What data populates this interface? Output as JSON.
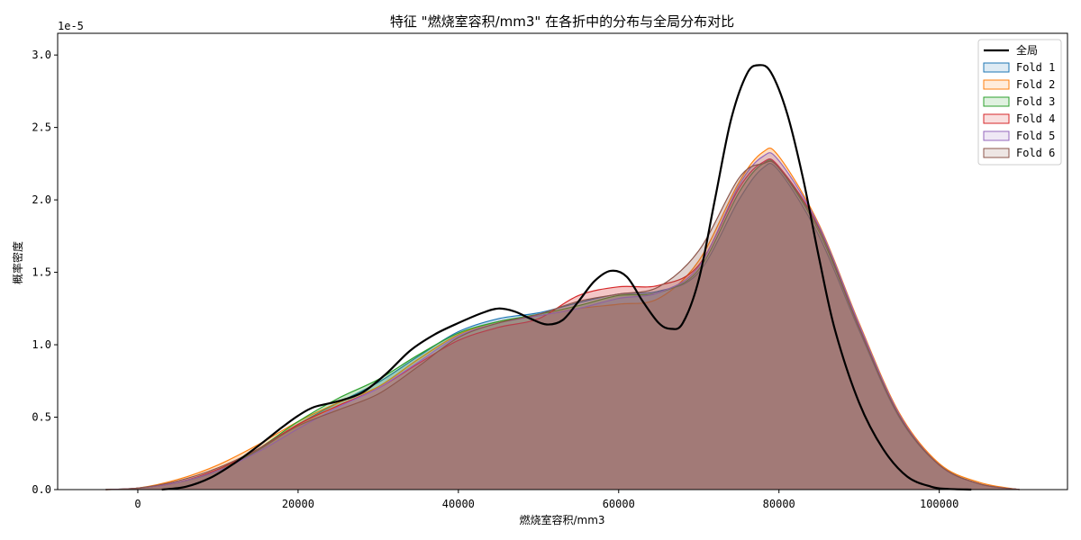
{
  "chart_data": {
    "type": "area",
    "title": "特征 \"燃烧室容积/mm3\" 在各折中的分布与全局分布对比",
    "xlabel": "燃烧室容积/mm3",
    "ylabel": "概率密度",
    "y_scale_label": "1e-5",
    "xlim": [
      -10000,
      116000
    ],
    "ylim": [
      0,
      3.15
    ],
    "x_ticks": [
      0,
      20000,
      40000,
      60000,
      80000,
      100000
    ],
    "x_tick_labels": [
      "0",
      "20000",
      "40000",
      "60000",
      "80000",
      "100000"
    ],
    "y_ticks": [
      0,
      0.5,
      1.0,
      1.5,
      2.0,
      2.5,
      3.0
    ],
    "y_tick_labels": [
      "0.0",
      "0.5",
      "1.0",
      "1.5",
      "2.0",
      "2.5",
      "3.0"
    ],
    "legend_position": "top-right",
    "x": [
      -4000,
      0,
      5000,
      10000,
      15000,
      20000,
      25000,
      30000,
      35000,
      40000,
      45000,
      50000,
      55000,
      60000,
      65000,
      70000,
      75000,
      78000,
      80000,
      85000,
      90000,
      95000,
      100000,
      105000,
      110000
    ],
    "series": [
      {
        "name": "全局",
        "kind": "line",
        "color": "#000000",
        "x": [
          3000,
          6000,
          9000,
          12000,
          15000,
          18000,
          20000,
          22000,
          25000,
          28000,
          31000,
          34000,
          37000,
          40000,
          43000,
          45000,
          47000,
          49000,
          51000,
          53000,
          55000,
          57000,
          59000,
          61000,
          63000,
          65000,
          66500,
          68000,
          70000,
          72000,
          74000,
          76000,
          77500,
          79000,
          81000,
          83000,
          85000,
          87000,
          90000,
          93000,
          96000,
          99000,
          101000,
          104000
        ],
        "values": [
          0.0,
          0.02,
          0.08,
          0.18,
          0.3,
          0.43,
          0.51,
          0.57,
          0.61,
          0.67,
          0.8,
          0.96,
          1.07,
          1.15,
          1.22,
          1.25,
          1.23,
          1.18,
          1.14,
          1.17,
          1.3,
          1.44,
          1.51,
          1.47,
          1.3,
          1.15,
          1.11,
          1.15,
          1.45,
          2.0,
          2.55,
          2.87,
          2.93,
          2.88,
          2.6,
          2.15,
          1.6,
          1.1,
          0.6,
          0.28,
          0.09,
          0.02,
          0.005,
          0.0
        ]
      },
      {
        "name": "Fold 1",
        "kind": "fill",
        "color": "#1f77b4",
        "values": [
          0.0,
          0.01,
          0.05,
          0.13,
          0.27,
          0.45,
          0.6,
          0.74,
          0.92,
          1.09,
          1.18,
          1.22,
          1.29,
          1.35,
          1.37,
          1.5,
          2.0,
          2.22,
          2.2,
          1.75,
          1.1,
          0.5,
          0.17,
          0.04,
          0.0
        ]
      },
      {
        "name": "Fold 2",
        "kind": "fill",
        "color": "#ff7f0e",
        "values": [
          0.0,
          0.01,
          0.07,
          0.17,
          0.31,
          0.47,
          0.6,
          0.71,
          0.9,
          1.07,
          1.16,
          1.2,
          1.25,
          1.28,
          1.32,
          1.58,
          2.12,
          2.33,
          2.3,
          1.83,
          1.15,
          0.53,
          0.18,
          0.05,
          0.0
        ]
      },
      {
        "name": "Fold 3",
        "kind": "fill",
        "color": "#2ca02c",
        "values": [
          0.0,
          0.01,
          0.05,
          0.13,
          0.28,
          0.47,
          0.63,
          0.76,
          0.93,
          1.08,
          1.16,
          1.21,
          1.27,
          1.34,
          1.36,
          1.52,
          2.05,
          2.25,
          2.22,
          1.78,
          1.12,
          0.51,
          0.17,
          0.04,
          0.0
        ]
      },
      {
        "name": "Fold 4",
        "kind": "fill",
        "color": "#d62728",
        "values": [
          0.0,
          0.01,
          0.05,
          0.14,
          0.28,
          0.45,
          0.58,
          0.7,
          0.87,
          1.03,
          1.12,
          1.18,
          1.34,
          1.4,
          1.41,
          1.55,
          2.08,
          2.26,
          2.23,
          1.81,
          1.13,
          0.52,
          0.17,
          0.04,
          0.0
        ]
      },
      {
        "name": "Fold 5",
        "kind": "fill",
        "color": "#9467bd",
        "values": [
          0.0,
          0.01,
          0.05,
          0.13,
          0.26,
          0.42,
          0.57,
          0.7,
          0.88,
          1.06,
          1.15,
          1.2,
          1.25,
          1.32,
          1.36,
          1.54,
          2.1,
          2.3,
          2.27,
          1.82,
          1.14,
          0.52,
          0.17,
          0.04,
          0.0
        ]
      },
      {
        "name": "Fold 6",
        "kind": "fill",
        "color": "#8c564b",
        "values": [
          0.0,
          0.01,
          0.06,
          0.15,
          0.28,
          0.44,
          0.55,
          0.66,
          0.85,
          1.05,
          1.15,
          1.21,
          1.3,
          1.35,
          1.4,
          1.65,
          2.15,
          2.25,
          2.22,
          1.8,
          1.12,
          0.51,
          0.17,
          0.04,
          0.0
        ]
      }
    ]
  }
}
